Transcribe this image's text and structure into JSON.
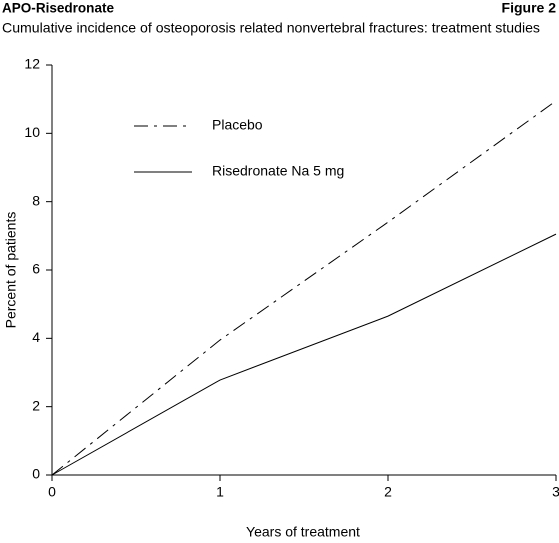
{
  "chart_data": {
    "type": "line",
    "header": "APO-Risedronate",
    "figure_label": "Figure 2",
    "title": "Cumulative incidence of osteoporosis related nonvertebral fractures: treatment studies",
    "x_label": "Years of treatment",
    "y_label": "Percent of patients",
    "x": [
      0,
      1,
      2,
      3
    ],
    "series": [
      {
        "name": "Placebo",
        "color": "#000000",
        "dash": "dash-dot",
        "values": [
          0,
          3.95,
          7.4,
          10.95
        ]
      },
      {
        "name": "Risedronate Na 5 mg",
        "color": "#000000",
        "dash": "solid",
        "values": [
          0,
          2.78,
          4.65,
          7.05
        ]
      }
    ],
    "xlim": [
      0,
      3
    ],
    "xticks": [
      0,
      1,
      2,
      3
    ],
    "ylim": [
      0,
      12
    ],
    "yticks": [
      0,
      2,
      4,
      6,
      8,
      10,
      12
    ],
    "grid": false,
    "legend": "upper left"
  }
}
